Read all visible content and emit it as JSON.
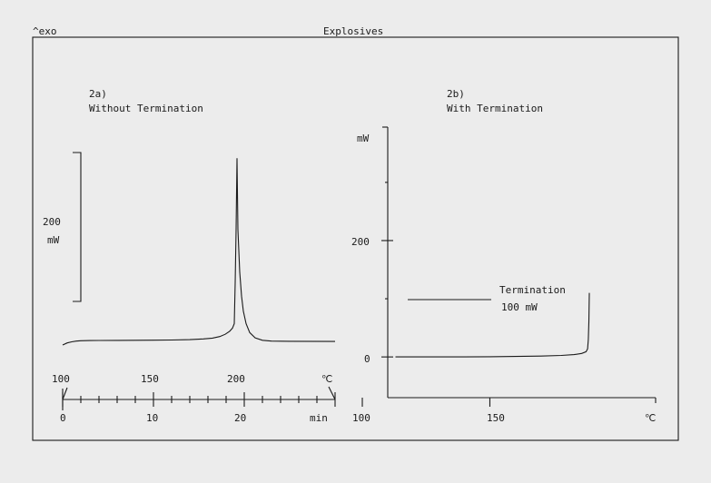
{
  "header": {
    "exo_label": "^exo",
    "title": "Explosives"
  },
  "chart_data": [
    {
      "id": "2a",
      "type": "line",
      "label_id": "2a)",
      "subtitle": "Without Termination",
      "scale_bar": {
        "value": "200",
        "unit": "mW"
      },
      "temp_axis": {
        "ticks": [
          "100",
          "150",
          "200"
        ],
        "unit": "℃"
      },
      "time_axis": {
        "ticks": [
          "0",
          "10",
          "20"
        ],
        "unit": "min",
        "xlim": [
          0,
          30
        ],
        "minor_step": 2
      },
      "curve": {
        "x_unit": "min",
        "points": [
          [
            0,
            0
          ],
          [
            0.5,
            2.3
          ],
          [
            1,
            3.6
          ],
          [
            1.5,
            4.4
          ],
          [
            2,
            4.8
          ],
          [
            3,
            5.0
          ],
          [
            4,
            5.1
          ],
          [
            6,
            5.2
          ],
          [
            8,
            5.3
          ],
          [
            10,
            5.4
          ],
          [
            12,
            5.6
          ],
          [
            14,
            6.0
          ],
          [
            15.5,
            6.8
          ],
          [
            16.5,
            7.8
          ],
          [
            17.3,
            9.5
          ],
          [
            17.9,
            12.0
          ],
          [
            18.4,
            15.5
          ],
          [
            18.7,
            19.0
          ],
          [
            18.9,
            24.0
          ],
          [
            19.0,
            70.0
          ],
          [
            19.1,
            130.0
          ],
          [
            19.2,
            210.0
          ],
          [
            19.3,
            130.0
          ],
          [
            19.5,
            82.0
          ],
          [
            19.7,
            55.0
          ],
          [
            19.9,
            38.0
          ],
          [
            20.2,
            24.0
          ],
          [
            20.6,
            14.0
          ],
          [
            21.2,
            8.0
          ],
          [
            22,
            5.3
          ],
          [
            23,
            4.4
          ],
          [
            25,
            4.2
          ],
          [
            30,
            4.0
          ]
        ]
      }
    },
    {
      "id": "2b",
      "type": "line",
      "label_id": "2b)",
      "subtitle": "With Termination",
      "ylabel": "mW",
      "y_ticks": [
        "200",
        "0"
      ],
      "y_tick_values": [
        200,
        0
      ],
      "ylim": [
        -70,
        395
      ],
      "x_ticks": [
        "100",
        "150"
      ],
      "x_tick_values": [
        100,
        150
      ],
      "xlim": [
        100,
        205
      ],
      "x_unit": "℃",
      "annotation": {
        "line1": "Termination",
        "line2": "100 mW"
      },
      "curve": {
        "points": [
          [
            113,
            0
          ],
          [
            120,
            0
          ],
          [
            130,
            0
          ],
          [
            140,
            0
          ],
          [
            150,
            0.4
          ],
          [
            160,
            0.8
          ],
          [
            170,
            1.5
          ],
          [
            178,
            2.6
          ],
          [
            183,
            4.0
          ],
          [
            186,
            6.0
          ],
          [
            187.7,
            9.0
          ],
          [
            188.3,
            14.0
          ],
          [
            188.6,
            30.0
          ],
          [
            188.8,
            60.0
          ],
          [
            189,
            110.0
          ]
        ]
      }
    }
  ]
}
